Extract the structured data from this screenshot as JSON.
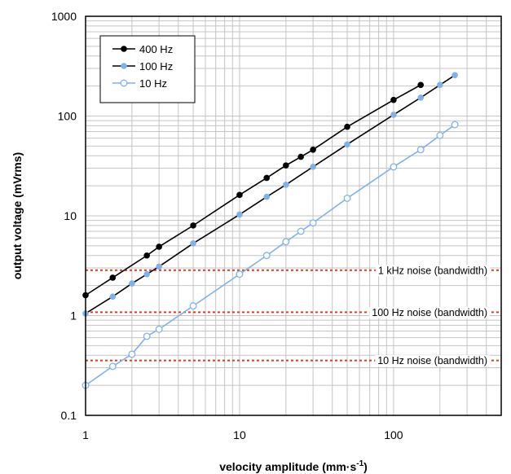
{
  "chart_data": {
    "type": "line",
    "xscale": "log",
    "yscale": "log",
    "xlim": [
      1,
      500
    ],
    "ylim": [
      0.1,
      1000
    ],
    "grid": true,
    "legend_position": "top-left",
    "xlabel": "velocity amplitude (mm·s",
    "xlabel_sup": "-1",
    "xlabel_close": ")",
    "ylabel": "output voltage (mVrms)",
    "xticks": [
      {
        "value": 1,
        "label": "1"
      },
      {
        "value": 10,
        "label": "10"
      },
      {
        "value": 100,
        "label": "100"
      }
    ],
    "yticks": [
      {
        "value": 0.1,
        "label": "0.1"
      },
      {
        "value": 1,
        "label": "1"
      },
      {
        "value": 10,
        "label": "10"
      },
      {
        "value": 100,
        "label": "100"
      },
      {
        "value": 1000,
        "label": "1000"
      }
    ],
    "series": [
      {
        "name": "400 Hz",
        "color": "#000000",
        "marker": "filled",
        "x": [
          1,
          1.5,
          2.5,
          3,
          5,
          10,
          15,
          20,
          25,
          30,
          50,
          100,
          150
        ],
        "y": [
          1.6,
          2.4,
          4.0,
          4.9,
          8.0,
          16.2,
          24.0,
          32.0,
          39.0,
          46.0,
          78.0,
          145.0,
          205.0
        ]
      },
      {
        "name": "100 Hz",
        "color": "#7fb2ea",
        "line_color": "#000000",
        "marker": "filled",
        "x": [
          1,
          1.5,
          2,
          2.5,
          3,
          5,
          10,
          15,
          20,
          30,
          50,
          100,
          150,
          200,
          250
        ],
        "y": [
          1.05,
          1.55,
          2.1,
          2.6,
          3.1,
          5.3,
          10.3,
          15.5,
          20.5,
          31.0,
          52.0,
          103.0,
          153.0,
          205.0,
          257.0
        ]
      },
      {
        "name": "10 Hz",
        "color": "#7fb2ea",
        "marker": "open",
        "x": [
          1,
          1.5,
          2,
          2.5,
          3,
          5,
          10,
          15,
          20,
          25,
          30,
          50,
          100,
          150,
          200,
          250
        ],
        "y": [
          0.2,
          0.31,
          0.41,
          0.62,
          0.73,
          1.25,
          2.6,
          4.0,
          5.5,
          7.0,
          8.5,
          15.0,
          31.0,
          46.0,
          64.0,
          82.0
        ]
      }
    ],
    "noise_levels": [
      {
        "label": "1 kHz noise (bandwidth)",
        "value": 2.85,
        "color": "#e8371d"
      },
      {
        "label": "100 Hz noise (bandwidth)",
        "value": 1.08,
        "color": "#e8371d"
      },
      {
        "label": "10 Hz noise (bandwidth)",
        "value": 0.355,
        "color": "#e8371d"
      }
    ]
  }
}
